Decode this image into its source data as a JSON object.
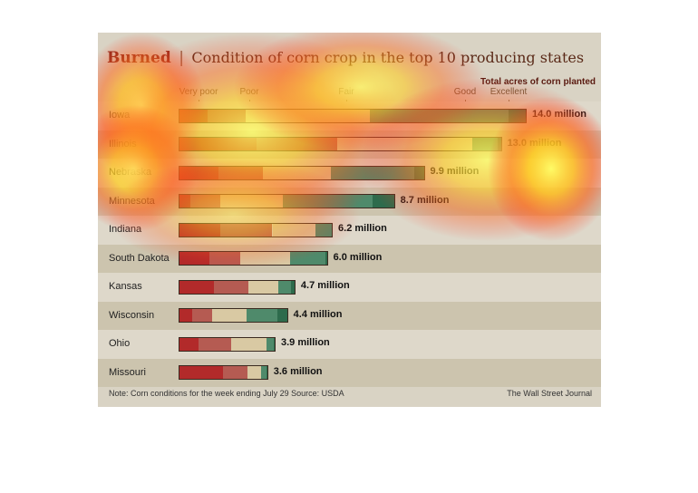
{
  "header": {
    "title": "Burned",
    "separator": "|",
    "subtitle": "Condition of corn crop in the top 10 producing states"
  },
  "scale": {
    "labels": [
      "Very poor",
      "Poor",
      "Fair",
      "Good",
      "Excellent"
    ],
    "total_header": "Total acres of corn planted"
  },
  "footer": {
    "note": "Note: Corn conditions for the week ending July 29   Source: USDA",
    "brand": "The Wall Street Journal"
  },
  "colors": {
    "very_poor": "#b22a2a",
    "poor": "#b55b52",
    "fair": "#d9c9a3",
    "good": "#4f8a6b",
    "excellent": "#2e6b4c"
  },
  "chart_data": {
    "type": "bar",
    "stacked": true,
    "title": "Burned | Condition of corn crop in the top 10 producing states",
    "categories": [
      "Iowa",
      "Illinois",
      "Nebraska",
      "Minnesota",
      "Indiana",
      "South Dakota",
      "Kansas",
      "Wisconsin",
      "Ohio",
      "Missouri"
    ],
    "series": [
      {
        "name": "Very poor",
        "values": [
          8,
          24,
          16,
          5,
          27,
          20,
          27,
          12,
          20,
          50
        ]
      },
      {
        "name": "Poor",
        "values": [
          11,
          25,
          18,
          14,
          34,
          21,
          27,
          18,
          34,
          28
        ]
      },
      {
        "name": "Fair",
        "values": [
          36,
          42,
          28,
          29,
          28,
          34,
          23,
          32,
          37,
          15
        ]
      },
      {
        "name": "Good",
        "values": [
          40,
          8,
          34,
          42,
          11,
          24,
          10,
          29,
          8,
          6
        ]
      },
      {
        "name": "Excellent",
        "values": [
          5,
          1,
          4,
          10,
          0,
          1,
          3,
          9,
          1,
          1
        ]
      }
    ],
    "acres": [
      14.0,
      13.0,
      9.9,
      8.7,
      6.2,
      6.0,
      4.7,
      4.4,
      3.9,
      3.6
    ],
    "acres_labels": [
      "14.0 million",
      "13.0 million",
      "9.9 million",
      "8.7 million",
      "6.2 million",
      "6.0 million",
      "4.7 million",
      "4.4 million",
      "3.9 million",
      "3.6 million"
    ]
  }
}
